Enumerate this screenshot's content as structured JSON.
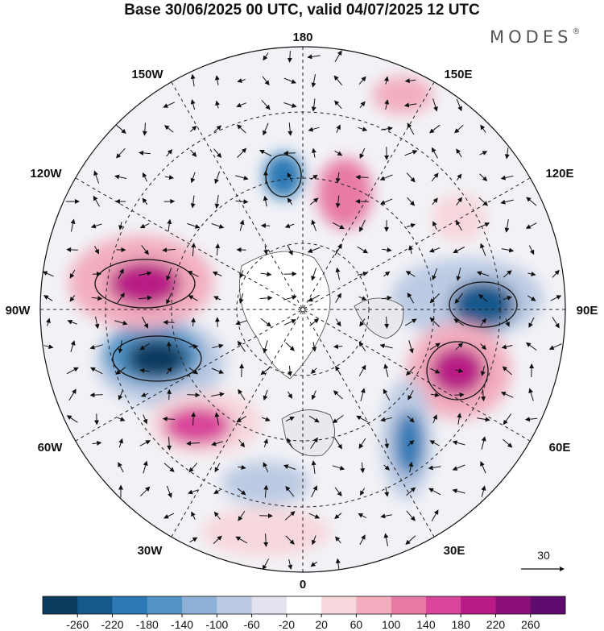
{
  "title": "Base 30/06/2025 00 UTC, valid 04/07/2025 12 UTC",
  "brand": {
    "name": "MODES",
    "mark": "®"
  },
  "longitude_labels": {
    "lon_180": "180",
    "lon_150e": "150E",
    "lon_120e": "120E",
    "lon_90e": "90E",
    "lon_60e": "60E",
    "lon_30e": "30E",
    "lon_0": "0",
    "lon_30w": "30W",
    "lon_60w": "60W",
    "lon_90w": "90W",
    "lon_120w": "120W",
    "lon_150w": "150W"
  },
  "vector_scale": {
    "label": "30"
  },
  "colorbar": {
    "ticks": [
      "-260",
      "-220",
      "-180",
      "-140",
      "-100",
      "-60",
      "-20",
      "20",
      "60",
      "100",
      "140",
      "180",
      "220",
      "260"
    ],
    "colors": [
      "#0d3b5e",
      "#15588c",
      "#2b78b4",
      "#5294c6",
      "#8cb0d6",
      "#bccbe3",
      "#e3e3ef",
      "#ffffff",
      "#f7d7dc",
      "#f2aebf",
      "#e87aa6",
      "#d8459a",
      "#b81b85",
      "#8a0f78",
      "#5e0a6f"
    ]
  },
  "anomalies": [
    {
      "name": "low-90w-center",
      "value": -260,
      "color": "#0d3b5e"
    },
    {
      "name": "high-90w-north",
      "value": 220,
      "color": "#b81b85"
    },
    {
      "name": "high-60w",
      "value": 180,
      "color": "#d8459a"
    },
    {
      "name": "low-90e",
      "value": -220,
      "color": "#15588c"
    },
    {
      "name": "high-60e",
      "value": 220,
      "color": "#b81b85"
    },
    {
      "name": "low-30e",
      "value": -180,
      "color": "#2b78b4"
    },
    {
      "name": "low-150w",
      "value": -180,
      "color": "#2b78b4"
    },
    {
      "name": "high-180e",
      "value": 140,
      "color": "#e87aa6"
    },
    {
      "name": "high-150e",
      "value": 100,
      "color": "#f2aebf"
    },
    {
      "name": "high-120e",
      "value": 60,
      "color": "#f7d7dc"
    }
  ]
}
